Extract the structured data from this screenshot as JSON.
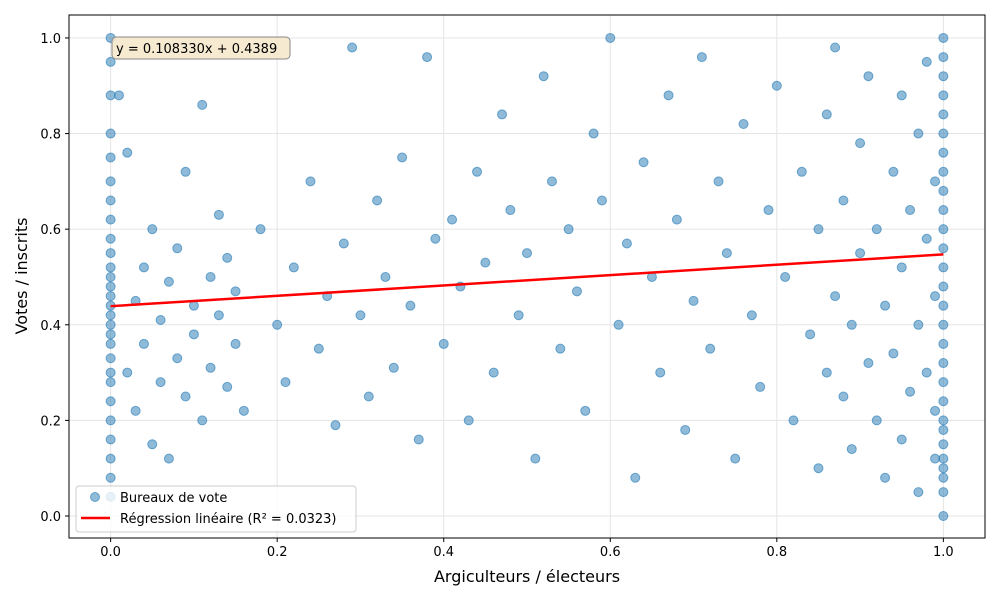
{
  "chart_data": {
    "type": "scatter",
    "title": "",
    "xlabel": "Argiculteurs / électeurs",
    "ylabel": "Votes / inscrits",
    "xlim": [
      -0.05,
      1.05
    ],
    "ylim": [
      -0.046,
      1.048
    ],
    "xticks": [
      "0.0",
      "0.2",
      "0.4",
      "0.6",
      "0.8",
      "1.0"
    ],
    "yticks": [
      "0.0",
      "0.2",
      "0.4",
      "0.6",
      "0.8",
      "1.0"
    ],
    "grid": true,
    "legend_position": "bottom-left",
    "colors": {
      "points": "#1f77b4",
      "regression": "#ff0000"
    },
    "annotation": "y = 0.108330x + 0.4389",
    "series": [
      {
        "name": "Bureaux de vote",
        "kind": "scatter",
        "points": [
          [
            0,
            0.04
          ],
          [
            0,
            0.08
          ],
          [
            0,
            0.12
          ],
          [
            0,
            0.16
          ],
          [
            0,
            0.2
          ],
          [
            0,
            0.24
          ],
          [
            0,
            0.28
          ],
          [
            0,
            0.3
          ],
          [
            0,
            0.33
          ],
          [
            0,
            0.36
          ],
          [
            0,
            0.38
          ],
          [
            0,
            0.4
          ],
          [
            0,
            0.42
          ],
          [
            0,
            0.44
          ],
          [
            0,
            0.46
          ],
          [
            0,
            0.48
          ],
          [
            0,
            0.5
          ],
          [
            0,
            0.52
          ],
          [
            0,
            0.55
          ],
          [
            0,
            0.58
          ],
          [
            0,
            0.62
          ],
          [
            0,
            0.66
          ],
          [
            0,
            0.7
          ],
          [
            0,
            0.75
          ],
          [
            0,
            0.8
          ],
          [
            0,
            0.88
          ],
          [
            0,
            0.95
          ],
          [
            0,
            1.0
          ],
          [
            1,
            0.0
          ],
          [
            1,
            0.05
          ],
          [
            1,
            0.08
          ],
          [
            1,
            0.1
          ],
          [
            1,
            0.12
          ],
          [
            1,
            0.15
          ],
          [
            1,
            0.18
          ],
          [
            1,
            0.2
          ],
          [
            1,
            0.24
          ],
          [
            1,
            0.28
          ],
          [
            1,
            0.32
          ],
          [
            1,
            0.36
          ],
          [
            1,
            0.4
          ],
          [
            1,
            0.44
          ],
          [
            1,
            0.48
          ],
          [
            1,
            0.52
          ],
          [
            1,
            0.56
          ],
          [
            1,
            0.6
          ],
          [
            1,
            0.64
          ],
          [
            1,
            0.68
          ],
          [
            1,
            0.72
          ],
          [
            1,
            0.76
          ],
          [
            1,
            0.8
          ],
          [
            1,
            0.84
          ],
          [
            1,
            0.88
          ],
          [
            1,
            0.92
          ],
          [
            1,
            0.96
          ],
          [
            1,
            1.0
          ],
          [
            0.01,
            0.88
          ],
          [
            0.02,
            0.76
          ],
          [
            0.02,
            0.3
          ],
          [
            0.03,
            0.45
          ],
          [
            0.03,
            0.22
          ],
          [
            0.04,
            0.52
          ],
          [
            0.04,
            0.36
          ],
          [
            0.05,
            0.15
          ],
          [
            0.05,
            0.6
          ],
          [
            0.06,
            0.41
          ],
          [
            0.06,
            0.28
          ],
          [
            0.07,
            0.49
          ],
          [
            0.07,
            0.12
          ],
          [
            0.08,
            0.33
          ],
          [
            0.08,
            0.56
          ],
          [
            0.09,
            0.72
          ],
          [
            0.09,
            0.25
          ],
          [
            0.1,
            0.44
          ],
          [
            0.1,
            0.38
          ],
          [
            0.11,
            0.86
          ],
          [
            0.11,
            0.2
          ],
          [
            0.12,
            0.5
          ],
          [
            0.12,
            0.31
          ],
          [
            0.13,
            0.63
          ],
          [
            0.13,
            0.42
          ],
          [
            0.14,
            0.27
          ],
          [
            0.14,
            0.54
          ],
          [
            0.15,
            0.36
          ],
          [
            0.15,
            0.47
          ],
          [
            0.16,
            0.22
          ],
          [
            0.18,
            0.6
          ],
          [
            0.2,
            0.4
          ],
          [
            0.21,
            0.28
          ],
          [
            0.22,
            0.52
          ],
          [
            0.24,
            0.7
          ],
          [
            0.25,
            0.35
          ],
          [
            0.26,
            0.46
          ],
          [
            0.27,
            0.19
          ],
          [
            0.28,
            0.57
          ],
          [
            0.29,
            0.98
          ],
          [
            0.3,
            0.42
          ],
          [
            0.31,
            0.25
          ],
          [
            0.32,
            0.66
          ],
          [
            0.33,
            0.5
          ],
          [
            0.34,
            0.31
          ],
          [
            0.35,
            0.75
          ],
          [
            0.36,
            0.44
          ],
          [
            0.37,
            0.16
          ],
          [
            0.38,
            0.96
          ],
          [
            0.39,
            0.58
          ],
          [
            0.4,
            0.36
          ],
          [
            0.41,
            0.62
          ],
          [
            0.42,
            0.48
          ],
          [
            0.43,
            0.2
          ],
          [
            0.44,
            0.72
          ],
          [
            0.45,
            0.53
          ],
          [
            0.46,
            0.3
          ],
          [
            0.47,
            0.84
          ],
          [
            0.48,
            0.64
          ],
          [
            0.49,
            0.42
          ],
          [
            0.5,
            0.55
          ],
          [
            0.51,
            0.12
          ],
          [
            0.52,
            0.92
          ],
          [
            0.53,
            0.7
          ],
          [
            0.54,
            0.35
          ],
          [
            0.55,
            0.6
          ],
          [
            0.56,
            0.47
          ],
          [
            0.57,
            0.22
          ],
          [
            0.58,
            0.8
          ],
          [
            0.59,
            0.66
          ],
          [
            0.6,
            1.0
          ],
          [
            0.61,
            0.4
          ],
          [
            0.62,
            0.57
          ],
          [
            0.63,
            0.08
          ],
          [
            0.64,
            0.74
          ],
          [
            0.65,
            0.5
          ],
          [
            0.66,
            0.3
          ],
          [
            0.67,
            0.88
          ],
          [
            0.68,
            0.62
          ],
          [
            0.69,
            0.18
          ],
          [
            0.7,
            0.45
          ],
          [
            0.71,
            0.96
          ],
          [
            0.72,
            0.35
          ],
          [
            0.73,
            0.7
          ],
          [
            0.74,
            0.55
          ],
          [
            0.75,
            0.12
          ],
          [
            0.76,
            0.82
          ],
          [
            0.77,
            0.42
          ],
          [
            0.78,
            0.27
          ],
          [
            0.79,
            0.64
          ],
          [
            0.8,
            0.9
          ],
          [
            0.81,
            0.5
          ],
          [
            0.82,
            0.2
          ],
          [
            0.83,
            0.72
          ],
          [
            0.84,
            0.38
          ],
          [
            0.85,
            0.6
          ],
          [
            0.85,
            0.1
          ],
          [
            0.86,
            0.84
          ],
          [
            0.86,
            0.3
          ],
          [
            0.87,
            0.46
          ],
          [
            0.87,
            0.98
          ],
          [
            0.88,
            0.25
          ],
          [
            0.88,
            0.66
          ],
          [
            0.89,
            0.4
          ],
          [
            0.89,
            0.14
          ],
          [
            0.9,
            0.78
          ],
          [
            0.9,
            0.55
          ],
          [
            0.91,
            0.32
          ],
          [
            0.91,
            0.92
          ],
          [
            0.92,
            0.2
          ],
          [
            0.92,
            0.6
          ],
          [
            0.93,
            0.44
          ],
          [
            0.93,
            0.08
          ],
          [
            0.94,
            0.72
          ],
          [
            0.94,
            0.34
          ],
          [
            0.95,
            0.52
          ],
          [
            0.95,
            0.16
          ],
          [
            0.95,
            0.88
          ],
          [
            0.96,
            0.26
          ],
          [
            0.96,
            0.64
          ],
          [
            0.97,
            0.4
          ],
          [
            0.97,
            0.05
          ],
          [
            0.97,
            0.8
          ],
          [
            0.98,
            0.3
          ],
          [
            0.98,
            0.58
          ],
          [
            0.98,
            0.95
          ],
          [
            0.99,
            0.12
          ],
          [
            0.99,
            0.46
          ],
          [
            0.99,
            0.7
          ],
          [
            0.99,
            0.22
          ]
        ]
      },
      {
        "name": "Régression linéaire (R² = 0.0323)",
        "kind": "line",
        "slope": 0.10833,
        "intercept": 0.4389,
        "x_range": [
          0,
          1
        ]
      }
    ]
  }
}
